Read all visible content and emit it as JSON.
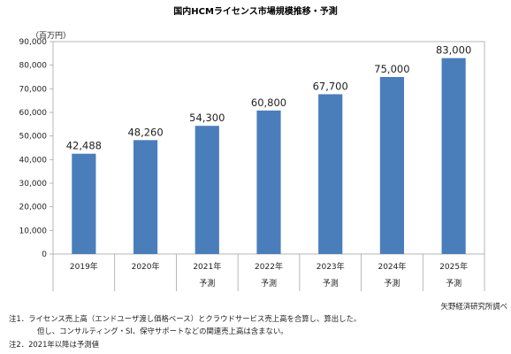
{
  "chart_data": {
    "type": "bar",
    "title": "国内HCMライセンス市場規模推移・予測",
    "ylabel": "（百万円）",
    "xlabel": "",
    "ylim": [
      0,
      90000
    ],
    "yticks": [
      "0",
      "10,000",
      "20,000",
      "30,000",
      "40,000",
      "50,000",
      "60,000",
      "70,000",
      "80,000",
      "90,000"
    ],
    "categories": [
      "2019年",
      "2020年",
      "2021年",
      "2022年",
      "2023年",
      "2024年",
      "2025年"
    ],
    "forecast_labels": [
      "",
      "",
      "予測",
      "予測",
      "予測",
      "予測",
      "予測"
    ],
    "values": [
      42488,
      48260,
      54300,
      60800,
      67700,
      75000,
      83000
    ],
    "data_labels": [
      "42,488",
      "48,260",
      "54,300",
      "60,800",
      "67,700",
      "75,000",
      "83,000"
    ],
    "bar_color": "#4a7ebb",
    "grid": false,
    "source": "矢野経済研究所調べ",
    "notes": [
      "注1．ライセンス売上高（エンドユーザ渡し価格ベース）とクラウドサービス売上高を合算し、算出した。",
      "但し、コンサルティング・SI、保守サポートなどの関連売上高は含まない。",
      "注2．2021年以降は予測値"
    ]
  }
}
